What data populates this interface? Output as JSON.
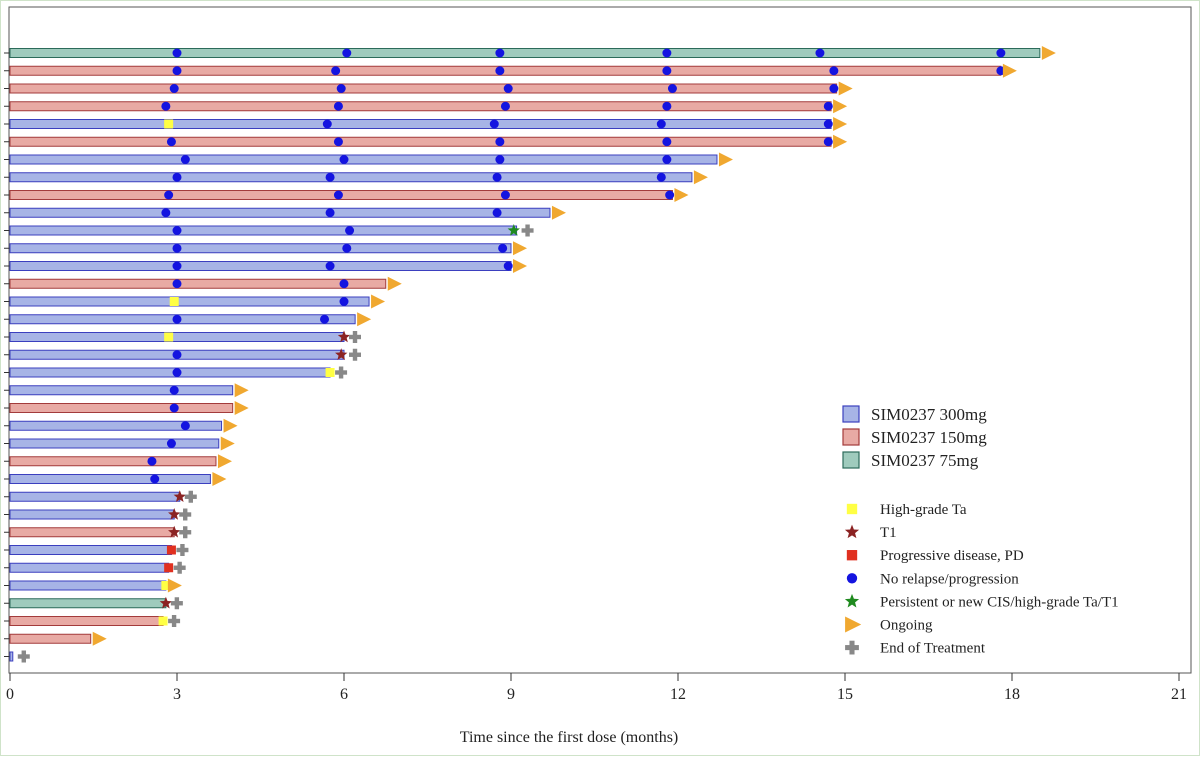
{
  "chart_data": {
    "type": "swimmer",
    "xlabel": "Time since the first dose (months)",
    "xlim": [
      0,
      21
    ],
    "xticks": [
      0,
      3,
      6,
      9,
      12,
      15,
      18,
      21
    ],
    "colors": {
      "300mg": "#a7b4e6",
      "300mg_edge": "#3b3fbf",
      "150mg": "#e8aaa4",
      "150mg_edge": "#a33b3b",
      "75mg": "#9fcbbd",
      "75mg_edge": "#2c6b5a",
      "high_grade_ta": "#ffff44",
      "t1": "#8b2323",
      "pd": "#e03020",
      "no_relapse": "#1414e0",
      "persistent_cis": "#1f8a1f",
      "ongoing": "#f0a830",
      "end_of_treatment": "#888888"
    },
    "dose_legend": [
      {
        "key": "300mg",
        "label": "SIM0237 300mg"
      },
      {
        "key": "150mg",
        "label": "SIM0237 150mg"
      },
      {
        "key": "75mg",
        "label": "SIM0237 75mg"
      }
    ],
    "event_legend": [
      {
        "key": "high_grade_ta",
        "shape": "square",
        "label": "High-grade Ta"
      },
      {
        "key": "t1",
        "shape": "star",
        "label": "T1"
      },
      {
        "key": "pd",
        "shape": "square",
        "label": "Progressive disease, PD"
      },
      {
        "key": "no_relapse",
        "shape": "circle",
        "label": "No relapse/progression"
      },
      {
        "key": "persistent_cis",
        "shape": "star",
        "label": "Persistent or new CIS/high-grade Ta/T1"
      },
      {
        "key": "ongoing",
        "shape": "triangle",
        "label": "Ongoing"
      },
      {
        "key": "end_of_treatment",
        "shape": "cross",
        "label": "End of Treatment"
      }
    ],
    "patients": [
      {
        "dose": "75mg",
        "duration": 18.5,
        "end": "ongoing",
        "events": [
          {
            "t": 3.0,
            "type": "no_relapse"
          },
          {
            "t": 6.05,
            "type": "no_relapse"
          },
          {
            "t": 8.8,
            "type": "no_relapse"
          },
          {
            "t": 11.8,
            "type": "no_relapse"
          },
          {
            "t": 14.55,
            "type": "no_relapse"
          },
          {
            "t": 17.8,
            "type": "no_relapse"
          }
        ]
      },
      {
        "dose": "150mg",
        "duration": 17.8,
        "end": "ongoing",
        "events": [
          {
            "t": 3.0,
            "type": "no_relapse"
          },
          {
            "t": 5.85,
            "type": "no_relapse"
          },
          {
            "t": 8.8,
            "type": "no_relapse"
          },
          {
            "t": 11.8,
            "type": "no_relapse"
          },
          {
            "t": 14.8,
            "type": "no_relapse"
          },
          {
            "t": 17.8,
            "type": "no_relapse"
          }
        ]
      },
      {
        "dose": "150mg",
        "duration": 14.85,
        "end": "ongoing",
        "events": [
          {
            "t": 2.95,
            "type": "no_relapse"
          },
          {
            "t": 5.95,
            "type": "no_relapse"
          },
          {
            "t": 8.95,
            "type": "no_relapse"
          },
          {
            "t": 11.9,
            "type": "no_relapse"
          },
          {
            "t": 14.8,
            "type": "no_relapse"
          }
        ]
      },
      {
        "dose": "150mg",
        "duration": 14.75,
        "end": "ongoing",
        "events": [
          {
            "t": 2.8,
            "type": "no_relapse"
          },
          {
            "t": 5.9,
            "type": "no_relapse"
          },
          {
            "t": 8.9,
            "type": "no_relapse"
          },
          {
            "t": 11.8,
            "type": "no_relapse"
          },
          {
            "t": 14.7,
            "type": "no_relapse"
          }
        ]
      },
      {
        "dose": "300mg",
        "duration": 14.75,
        "end": "ongoing",
        "events": [
          {
            "t": 2.85,
            "type": "high_grade_ta"
          },
          {
            "t": 5.7,
            "type": "no_relapse"
          },
          {
            "t": 8.7,
            "type": "no_relapse"
          },
          {
            "t": 11.7,
            "type": "no_relapse"
          },
          {
            "t": 14.7,
            "type": "no_relapse"
          }
        ]
      },
      {
        "dose": "150mg",
        "duration": 14.75,
        "end": "ongoing",
        "events": [
          {
            "t": 2.9,
            "type": "no_relapse"
          },
          {
            "t": 5.9,
            "type": "no_relapse"
          },
          {
            "t": 8.8,
            "type": "no_relapse"
          },
          {
            "t": 11.8,
            "type": "no_relapse"
          },
          {
            "t": 14.7,
            "type": "no_relapse"
          }
        ]
      },
      {
        "dose": "300mg",
        "duration": 12.7,
        "end": "ongoing",
        "events": [
          {
            "t": 3.15,
            "type": "no_relapse"
          },
          {
            "t": 6.0,
            "type": "no_relapse"
          },
          {
            "t": 8.8,
            "type": "no_relapse"
          },
          {
            "t": 11.8,
            "type": "no_relapse"
          }
        ]
      },
      {
        "dose": "300mg",
        "duration": 12.25,
        "end": "ongoing",
        "events": [
          {
            "t": 3.0,
            "type": "no_relapse"
          },
          {
            "t": 5.75,
            "type": "no_relapse"
          },
          {
            "t": 8.75,
            "type": "no_relapse"
          },
          {
            "t": 11.7,
            "type": "no_relapse"
          }
        ]
      },
      {
        "dose": "150mg",
        "duration": 11.9,
        "end": "ongoing",
        "events": [
          {
            "t": 2.85,
            "type": "no_relapse"
          },
          {
            "t": 5.9,
            "type": "no_relapse"
          },
          {
            "t": 8.9,
            "type": "no_relapse"
          },
          {
            "t": 11.85,
            "type": "no_relapse"
          }
        ]
      },
      {
        "dose": "300mg",
        "duration": 9.7,
        "end": "ongoing",
        "events": [
          {
            "t": 2.8,
            "type": "no_relapse"
          },
          {
            "t": 5.75,
            "type": "no_relapse"
          },
          {
            "t": 8.75,
            "type": "no_relapse"
          }
        ]
      },
      {
        "dose": "300mg",
        "duration": 9.1,
        "end": "end_of_treatment",
        "events": [
          {
            "t": 3.0,
            "type": "no_relapse"
          },
          {
            "t": 6.1,
            "type": "no_relapse"
          },
          {
            "t": 9.05,
            "type": "persistent_cis"
          }
        ]
      },
      {
        "dose": "300mg",
        "duration": 9.0,
        "end": "ongoing",
        "events": [
          {
            "t": 3.0,
            "type": "no_relapse"
          },
          {
            "t": 6.05,
            "type": "no_relapse"
          },
          {
            "t": 8.85,
            "type": "no_relapse"
          }
        ]
      },
      {
        "dose": "300mg",
        "duration": 9.0,
        "end": "ongoing",
        "events": [
          {
            "t": 3.0,
            "type": "no_relapse"
          },
          {
            "t": 5.75,
            "type": "no_relapse"
          },
          {
            "t": 8.95,
            "type": "no_relapse"
          }
        ]
      },
      {
        "dose": "150mg",
        "duration": 6.75,
        "end": "ongoing",
        "events": [
          {
            "t": 3.0,
            "type": "no_relapse"
          },
          {
            "t": 6.0,
            "type": "no_relapse"
          }
        ]
      },
      {
        "dose": "300mg",
        "duration": 6.45,
        "end": "ongoing",
        "events": [
          {
            "t": 2.95,
            "type": "high_grade_ta"
          },
          {
            "t": 6.0,
            "type": "no_relapse"
          }
        ]
      },
      {
        "dose": "300mg",
        "duration": 6.2,
        "end": "ongoing",
        "events": [
          {
            "t": 3.0,
            "type": "no_relapse"
          },
          {
            "t": 5.65,
            "type": "no_relapse"
          }
        ]
      },
      {
        "dose": "300mg",
        "duration": 6.0,
        "end": "end_of_treatment",
        "events": [
          {
            "t": 2.85,
            "type": "high_grade_ta"
          },
          {
            "t": 6.0,
            "type": "t1"
          }
        ]
      },
      {
        "dose": "300mg",
        "duration": 6.0,
        "end": "end_of_treatment",
        "events": [
          {
            "t": 3.0,
            "type": "no_relapse"
          },
          {
            "t": 5.95,
            "type": "t1"
          }
        ]
      },
      {
        "dose": "300mg",
        "duration": 5.75,
        "end": "end_of_treatment",
        "events": [
          {
            "t": 3.0,
            "type": "no_relapse"
          },
          {
            "t": 5.75,
            "type": "high_grade_ta"
          }
        ]
      },
      {
        "dose": "300mg",
        "duration": 4.0,
        "end": "ongoing",
        "events": [
          {
            "t": 2.95,
            "type": "no_relapse"
          }
        ]
      },
      {
        "dose": "150mg",
        "duration": 4.0,
        "end": "ongoing",
        "events": [
          {
            "t": 2.95,
            "type": "no_relapse"
          }
        ]
      },
      {
        "dose": "300mg",
        "duration": 3.8,
        "end": "ongoing",
        "events": [
          {
            "t": 3.15,
            "type": "no_relapse"
          }
        ]
      },
      {
        "dose": "300mg",
        "duration": 3.75,
        "end": "ongoing",
        "events": [
          {
            "t": 2.9,
            "type": "no_relapse"
          }
        ]
      },
      {
        "dose": "150mg",
        "duration": 3.7,
        "end": "ongoing",
        "events": [
          {
            "t": 2.55,
            "type": "no_relapse"
          }
        ]
      },
      {
        "dose": "300mg",
        "duration": 3.6,
        "end": "ongoing",
        "events": [
          {
            "t": 2.6,
            "type": "no_relapse"
          }
        ]
      },
      {
        "dose": "300mg",
        "duration": 3.05,
        "end": "end_of_treatment",
        "events": [
          {
            "t": 3.05,
            "type": "t1"
          }
        ]
      },
      {
        "dose": "300mg",
        "duration": 2.95,
        "end": "end_of_treatment",
        "events": [
          {
            "t": 2.95,
            "type": "t1"
          }
        ]
      },
      {
        "dose": "150mg",
        "duration": 2.95,
        "end": "end_of_treatment",
        "events": [
          {
            "t": 2.95,
            "type": "t1"
          }
        ]
      },
      {
        "dose": "300mg",
        "duration": 2.9,
        "end": "end_of_treatment",
        "events": [
          {
            "t": 2.9,
            "type": "pd"
          }
        ]
      },
      {
        "dose": "300mg",
        "duration": 2.85,
        "end": "end_of_treatment",
        "events": [
          {
            "t": 2.85,
            "type": "pd"
          }
        ]
      },
      {
        "dose": "300mg",
        "duration": 2.8,
        "end": "ongoing",
        "events": [
          {
            "t": 2.8,
            "type": "high_grade_ta"
          }
        ]
      },
      {
        "dose": "75mg",
        "duration": 2.8,
        "end": "end_of_treatment",
        "events": [
          {
            "t": 2.8,
            "type": "t1"
          }
        ]
      },
      {
        "dose": "150mg",
        "duration": 2.75,
        "end": "end_of_treatment",
        "events": [
          {
            "t": 2.75,
            "type": "high_grade_ta"
          }
        ]
      },
      {
        "dose": "150mg",
        "duration": 1.45,
        "end": "ongoing",
        "events": []
      },
      {
        "dose": "300mg",
        "duration": 0.05,
        "end": "end_of_treatment",
        "events": []
      }
    ]
  }
}
